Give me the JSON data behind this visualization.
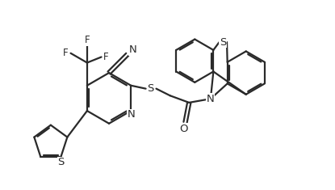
{
  "background_color": "#ffffff",
  "line_color": "#2a2a2a",
  "line_width": 1.6,
  "font_size": 8.5,
  "figsize": [
    4.15,
    2.35
  ],
  "dpi": 100,
  "xlim": [
    0,
    10
  ],
  "ylim": [
    0,
    6
  ]
}
